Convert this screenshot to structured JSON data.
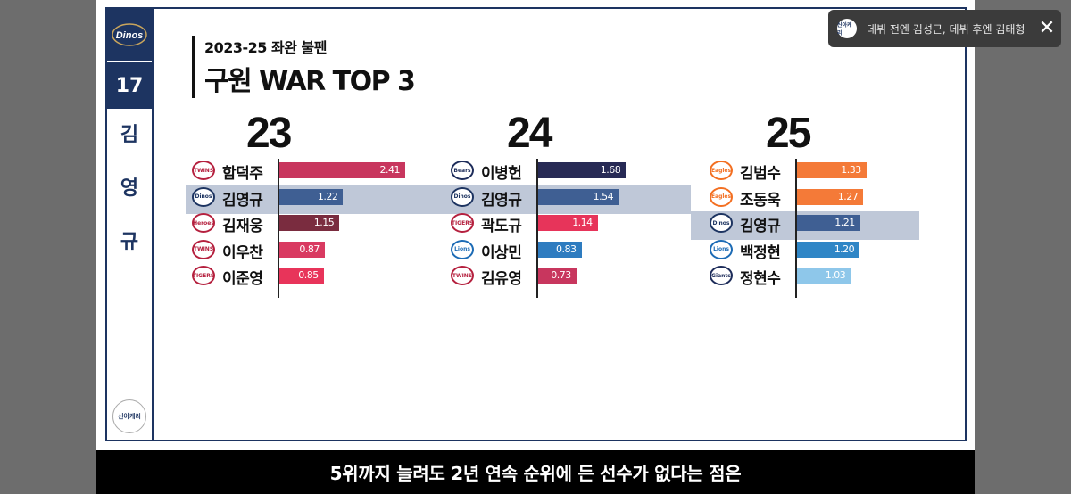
{
  "sidebar": {
    "team_logo_text": "Dinos",
    "number": "17",
    "player_chars": [
      "김",
      "영",
      "규"
    ],
    "channel_logo_text": "신아케리"
  },
  "header": {
    "subtitle": "2023-25 좌완 불펜",
    "title": "구원 WAR TOP 3"
  },
  "colors": {
    "navy": "#1d3461",
    "highlight": "#bfc8d8"
  },
  "chart_data": [
    {
      "type": "bar",
      "title": "23",
      "categories": [
        "함덕주",
        "김영규",
        "김재웅",
        "이우찬",
        "이준영"
      ],
      "values": [
        2.41,
        1.22,
        1.15,
        0.87,
        0.85
      ],
      "labels": [
        "2.41",
        "1.22",
        "1.15",
        "0.87",
        "0.85"
      ],
      "teams": [
        "TWINS",
        "Dinos",
        "Heroes",
        "TWINS",
        "TIGERS"
      ],
      "colors": [
        "#c8365e",
        "#3f5f93",
        "#7a2c3f",
        "#d93a61",
        "#e8345a"
      ],
      "highlight_index": 1
    },
    {
      "type": "bar",
      "title": "24",
      "categories": [
        "이병헌",
        "김영규",
        "곽도규",
        "이상민",
        "김유영"
      ],
      "values": [
        1.68,
        1.54,
        1.14,
        0.83,
        0.73
      ],
      "labels": [
        "1.68",
        "1.54",
        "1.14",
        "0.83",
        "0.73"
      ],
      "teams": [
        "Bears",
        "Dinos",
        "TIGERS",
        "Lions",
        "TWINS"
      ],
      "colors": [
        "#272a55",
        "#3f5f93",
        "#e7345a",
        "#2e7cc0",
        "#c8365e"
      ],
      "highlight_index": 1
    },
    {
      "type": "bar",
      "title": "25",
      "categories": [
        "김범수",
        "조동욱",
        "김영규",
        "백정현",
        "정현수"
      ],
      "values": [
        1.33,
        1.27,
        1.21,
        1.2,
        1.03
      ],
      "labels": [
        "1.33",
        "1.27",
        "1.21",
        "1.20",
        "1.03"
      ],
      "teams": [
        "Eagles",
        "Eagles",
        "Dinos",
        "Lions",
        "Giants"
      ],
      "colors": [
        "#f47a38",
        "#f47a38",
        "#3f5f93",
        "#2f86c6",
        "#8ec7ea"
      ],
      "highlight_index": 2
    }
  ],
  "caption": "5위까지 늘려도 2년 연속 순위에 든 선수가 없다는 점은",
  "toast": {
    "icon_text": "신아케리",
    "text": "데뷔 전엔 김성근, 데뷔 후엔 김태형"
  }
}
